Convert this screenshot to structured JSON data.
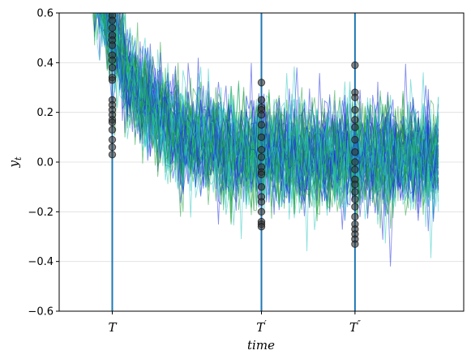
{
  "chart_data": {
    "type": "line",
    "title": "",
    "xlabel": "time",
    "ylabel": "y_t",
    "ylabel_main": "y",
    "ylabel_sub": "t",
    "ylim": [
      -0.6,
      0.6
    ],
    "yticks": [
      -0.6,
      -0.4,
      -0.2,
      0.0,
      0.2,
      0.4,
      0.6
    ],
    "ytick_labels": [
      "−0.6",
      "−0.4",
      "−0.2",
      "0.0",
      "0.2",
      "0.4",
      "0.6"
    ],
    "xlim": [
      -10,
      150
    ],
    "grid": "horizontal",
    "n_paths": 60,
    "n_steps": 140,
    "start_value": 0.95,
    "decay_rate": 0.06,
    "noise_sd": 0.11,
    "series_colors": [
      "#1f2fe0",
      "#1e9e3a",
      "#2cc7c0"
    ],
    "series_alpha": 0.55,
    "vline_color": "#1f77b4",
    "marker_color": "#333333",
    "vlines": [
      {
        "x": 11,
        "label": "T",
        "label_main": "T",
        "label_prime": ""
      },
      {
        "x": 70,
        "label": "T′",
        "label_main": "T",
        "label_prime": "′"
      },
      {
        "x": 107,
        "label": "T″",
        "label_main": "T",
        "label_prime": "″"
      }
    ],
    "markers": [
      {
        "x": 11,
        "y": [
          0.59,
          0.57,
          0.54,
          0.51,
          0.49,
          0.47,
          0.43,
          0.41,
          0.38,
          0.34,
          0.33,
          0.25,
          0.23,
          0.21,
          0.19,
          0.17,
          0.16,
          0.13,
          0.09,
          0.06,
          0.03
        ]
      },
      {
        "x": 70,
        "y": [
          0.32,
          0.25,
          0.22,
          0.21,
          0.19,
          0.15,
          0.1,
          0.05,
          0.02,
          -0.02,
          -0.04,
          -0.05,
          -0.1,
          -0.14,
          -0.16,
          -0.2,
          -0.24,
          -0.25,
          -0.26
        ]
      },
      {
        "x": 107,
        "y": [
          0.39,
          0.28,
          0.26,
          0.21,
          0.17,
          0.14,
          0.09,
          0.04,
          0.0,
          -0.03,
          -0.07,
          -0.09,
          -0.12,
          -0.15,
          -0.18,
          -0.22,
          -0.25,
          -0.27,
          -0.29,
          -0.31,
          -0.33
        ]
      }
    ]
  }
}
